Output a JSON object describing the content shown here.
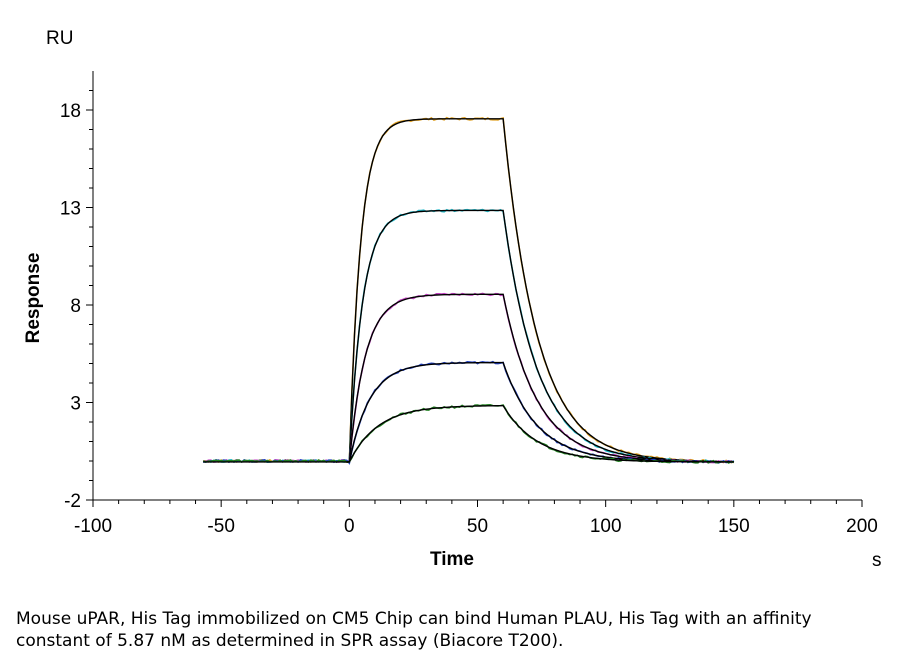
{
  "chart_data": {
    "type": "line",
    "y_unit": "RU",
    "x_unit": "s",
    "xlabel": "Time",
    "ylabel": "Response",
    "xlim": [
      -100,
      200
    ],
    "ylim": [
      -2,
      20
    ],
    "x_ticks": [
      -100,
      -50,
      0,
      50,
      100,
      150,
      200
    ],
    "y_ticks": [
      -2,
      3,
      8,
      13,
      18
    ],
    "x_tick_labels": [
      "-100",
      "-50",
      "0",
      "50",
      "100",
      "150",
      "200"
    ],
    "y_tick_labels": [
      "-2",
      "3",
      "8",
      "13",
      "18"
    ],
    "grid": false,
    "legend": "none",
    "injection_start": 0,
    "injection_end": 60,
    "x_end": 150,
    "series": [
      {
        "plateau": 17.6,
        "color": "#E0A020",
        "fit_color": "#000000"
      },
      {
        "plateau": 12.9,
        "color": "#20B8C8",
        "fit_color": "#000000"
      },
      {
        "plateau": 8.6,
        "color": "#C040C0",
        "fit_color": "#000000"
      },
      {
        "plateau": 5.1,
        "color": "#2040C0",
        "fit_color": "#000000"
      },
      {
        "plateau": 2.9,
        "color": "#208020",
        "fit_color": "#000000"
      }
    ]
  },
  "caption": "Mouse uPAR, His Tag immobilized on CM5 Chip can bind Human PLAU, His Tag with an affinity constant of 5.87 nM as determined in SPR assay (Biacore T200)."
}
